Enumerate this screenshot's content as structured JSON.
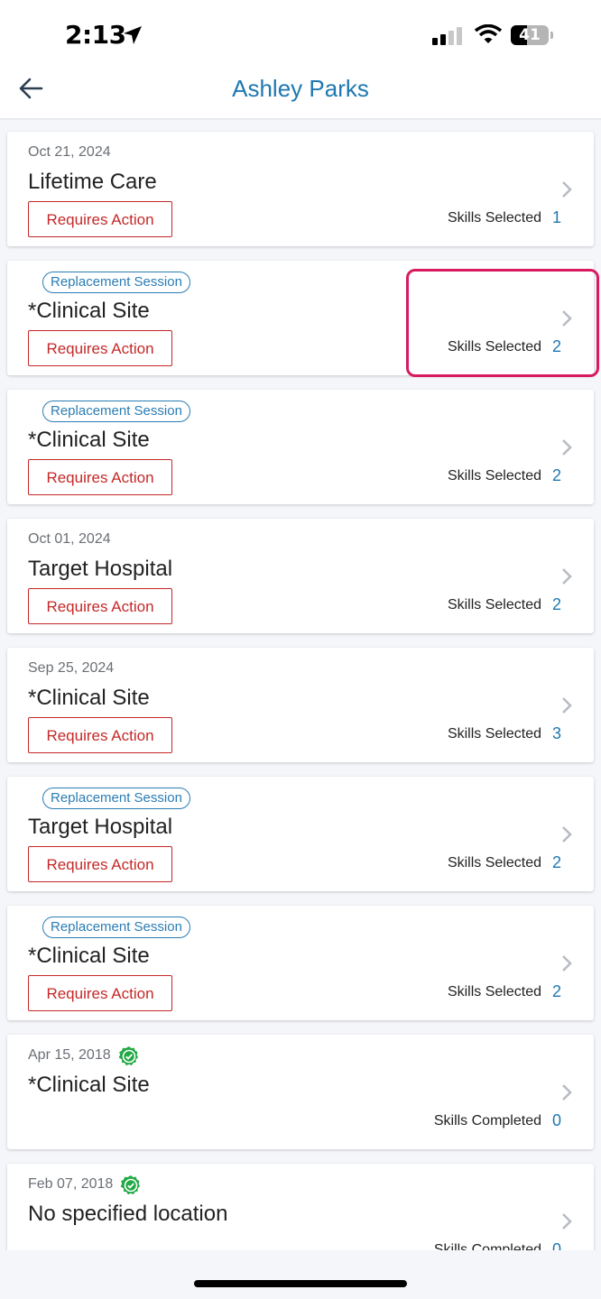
{
  "status_bar": {
    "time": "2:13",
    "battery": "41",
    "battery_level_percent": 41
  },
  "header": {
    "title": "Ashley Parks",
    "back_icon": "arrow-left-icon"
  },
  "colors": {
    "accent": "#1f78b0",
    "action": "#c62828",
    "highlight": "#d81b60",
    "verified": "#22a845"
  },
  "sessions": [
    {
      "date": "Oct 21, 2024",
      "verified": false,
      "badge": "",
      "location": "Lifetime Care",
      "action": "Requires Action",
      "skills_label": "Skills Selected",
      "skills_count": "1"
    },
    {
      "date": "",
      "verified": false,
      "badge": "Replacement Session",
      "location": "*Clinical Site",
      "action": "Requires Action",
      "skills_label": "Skills Selected",
      "skills_count": "2",
      "highlighted": true
    },
    {
      "date": "",
      "verified": false,
      "badge": "Replacement Session",
      "location": "*Clinical Site",
      "action": "Requires Action",
      "skills_label": "Skills Selected",
      "skills_count": "2"
    },
    {
      "date": "Oct 01, 2024",
      "verified": false,
      "badge": "",
      "location": "Target Hospital",
      "action": "Requires Action",
      "skills_label": "Skills Selected",
      "skills_count": "2"
    },
    {
      "date": "Sep 25, 2024",
      "verified": false,
      "badge": "",
      "location": "*Clinical Site",
      "action": "Requires Action",
      "skills_label": "Skills Selected",
      "skills_count": "3"
    },
    {
      "date": "",
      "verified": false,
      "badge": "Replacement Session",
      "location": "Target Hospital",
      "action": "Requires Action",
      "skills_label": "Skills Selected",
      "skills_count": "2"
    },
    {
      "date": "",
      "verified": false,
      "badge": "Replacement Session",
      "location": "*Clinical Site",
      "action": "Requires Action",
      "skills_label": "Skills Selected",
      "skills_count": "2"
    },
    {
      "date": "Apr 15, 2018",
      "verified": true,
      "badge": "",
      "location": "*Clinical Site",
      "action": "",
      "skills_label": "Skills Completed",
      "skills_count": "0"
    },
    {
      "date": "Feb 07, 2018",
      "verified": true,
      "badge": "",
      "location": "No specified location",
      "action": "",
      "skills_label": "Skills Completed",
      "skills_count": "0"
    }
  ]
}
